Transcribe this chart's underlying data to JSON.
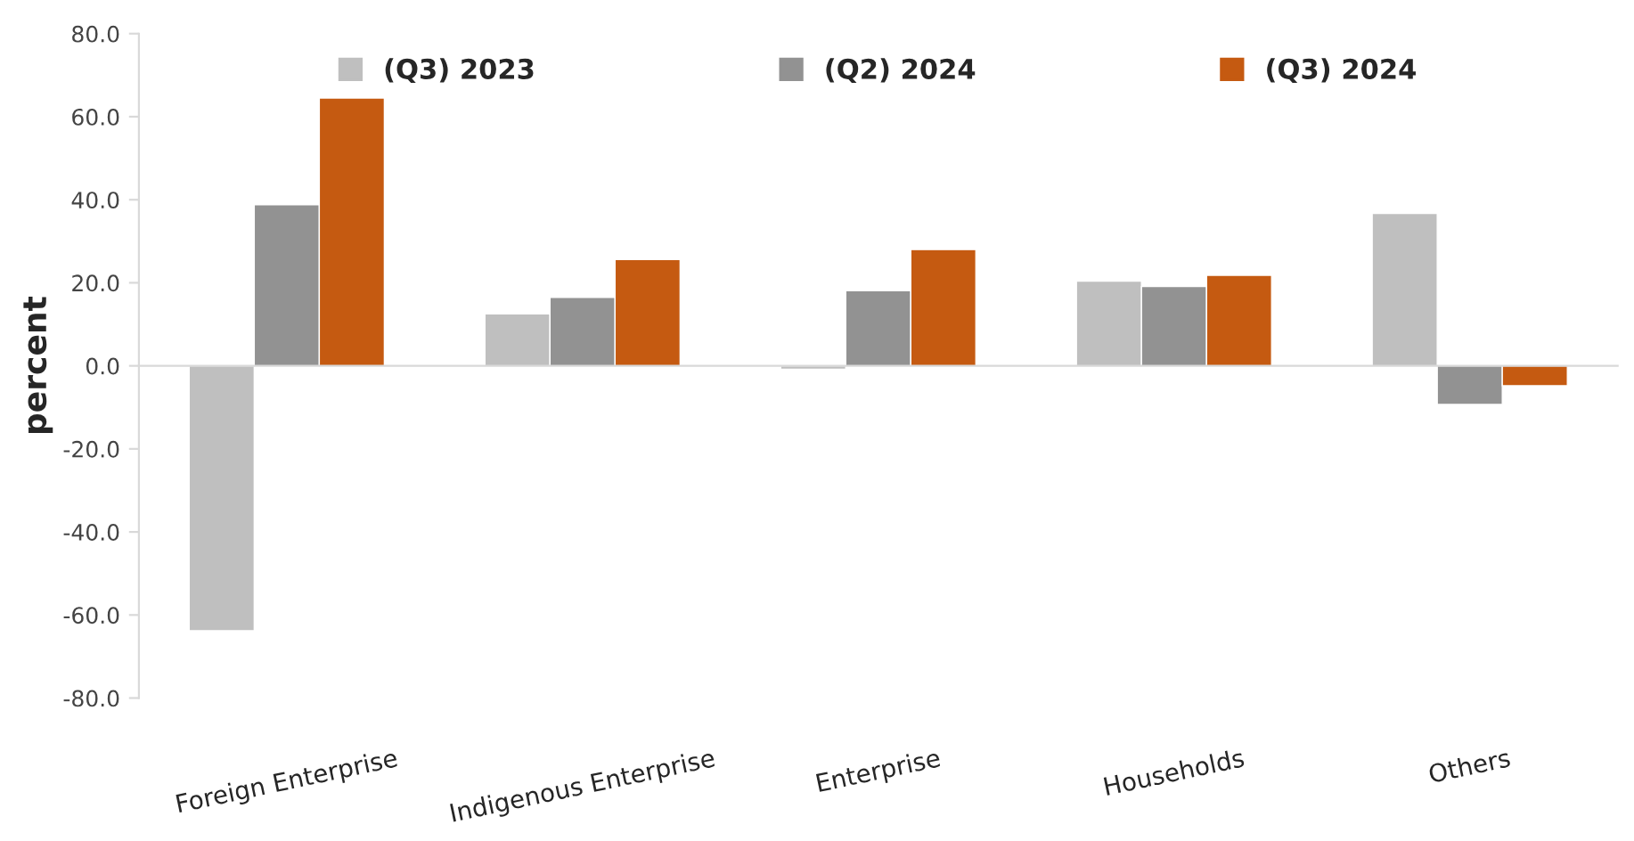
{
  "chart_data": {
    "type": "bar",
    "ylabel": "percent",
    "categories": [
      "Foreign Enterprise",
      "Indigenous Enterprise",
      "Enterprise",
      "Households",
      "Others"
    ],
    "series": [
      {
        "name": "(Q3) 2023",
        "color": "#bfbfbf",
        "values": [
          -63.8,
          12.5,
          -0.8,
          20.4,
          36.7
        ]
      },
      {
        "name": "(Q2) 2024",
        "color": "#929292",
        "values": [
          38.8,
          16.5,
          18.1,
          19.1,
          -9.3
        ]
      },
      {
        "name": "(Q3) 2024",
        "color": "#c55a11",
        "values": [
          64.5,
          25.6,
          28.0,
          21.8,
          -4.8
        ]
      }
    ],
    "ylim": [
      -80,
      80
    ],
    "yticks": [
      {
        "value": -80,
        "label": "-80.0"
      },
      {
        "value": -60,
        "label": "-60.0"
      },
      {
        "value": -40,
        "label": "-40.0"
      },
      {
        "value": -20,
        "label": "-20.0"
      },
      {
        "value": 0,
        "label": "0.0"
      },
      {
        "value": 20,
        "label": "20.0"
      },
      {
        "value": 40,
        "label": "40.0"
      },
      {
        "value": 60,
        "label": "60.0"
      },
      {
        "value": 80,
        "label": "80.0"
      }
    ],
    "legend": "top"
  }
}
